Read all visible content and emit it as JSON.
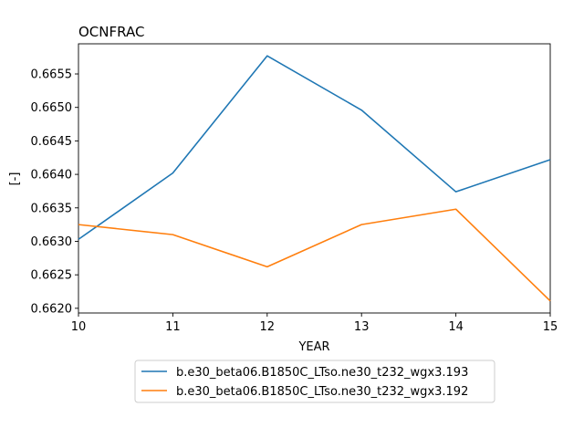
{
  "chart_data": {
    "type": "line",
    "title": "OCNFRAC",
    "xlabel": "YEAR",
    "ylabel": "[-]",
    "x": [
      10,
      11,
      12,
      13,
      14,
      15
    ],
    "xlim": [
      10,
      15
    ],
    "ylim": [
      0.66193,
      0.66595
    ],
    "xticks": [
      "10",
      "11",
      "12",
      "13",
      "14",
      "15"
    ],
    "yticks": [
      "0.6620",
      "0.6625",
      "0.6630",
      "0.6635",
      "0.6640",
      "0.6645",
      "0.6650",
      "0.6655"
    ],
    "grid": false,
    "legend_position": "below",
    "series": [
      {
        "name": "b.e30_beta06.B1850C_LTso.ne30_t232_wgx3.193",
        "color": "#1f77b4",
        "values": [
          0.66303,
          0.66402,
          0.66577,
          0.66496,
          0.66374,
          0.66422
        ]
      },
      {
        "name": "b.e30_beta06.B1850C_LTso.ne30_t232_wgx3.192",
        "color": "#ff7f0e",
        "values": [
          0.66325,
          0.6631,
          0.66262,
          0.66325,
          0.66348,
          0.66211
        ]
      }
    ]
  }
}
